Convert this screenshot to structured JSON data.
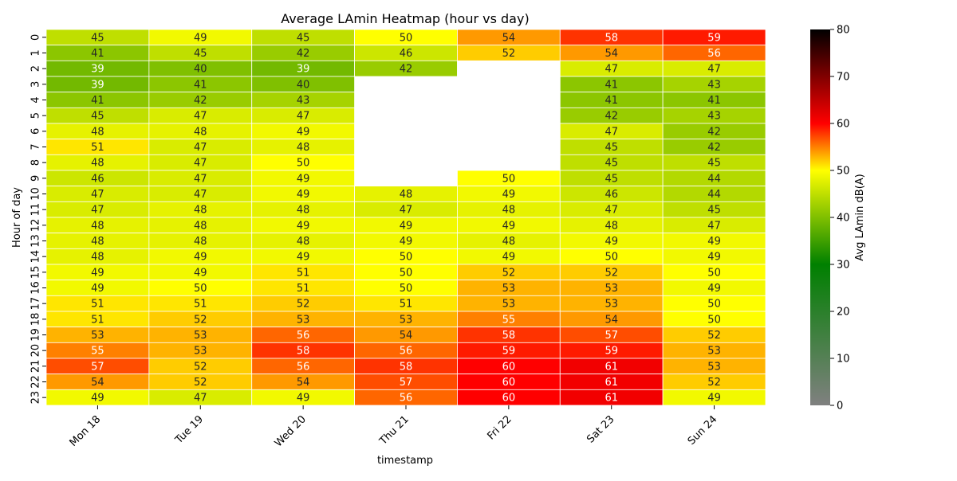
{
  "chart_data": {
    "type": "heatmap",
    "title": "Average LAmin Heatmap (hour vs day)",
    "xlabel": "timestamp",
    "ylabel": "Hour of day",
    "x_categories": [
      "Mon 18",
      "Tue 19",
      "Wed 20",
      "Thu 21",
      "Fri 22",
      "Sat 23",
      "Sun 24"
    ],
    "y_categories": [
      "0",
      "1",
      "2",
      "3",
      "4",
      "5",
      "6",
      "7",
      "8",
      "9",
      "10",
      "11",
      "12",
      "13",
      "14",
      "15",
      "16",
      "17",
      "18",
      "19",
      "20",
      "21",
      "22",
      "23"
    ],
    "values": [
      [
        45,
        49,
        45,
        50,
        54,
        58,
        59
      ],
      [
        41,
        45,
        42,
        46,
        52,
        54,
        56
      ],
      [
        39,
        40,
        39,
        42,
        null,
        47,
        47
      ],
      [
        39,
        41,
        40,
        null,
        null,
        41,
        43
      ],
      [
        41,
        42,
        43,
        null,
        null,
        41,
        41
      ],
      [
        45,
        47,
        47,
        null,
        null,
        42,
        43
      ],
      [
        48,
        48,
        49,
        null,
        null,
        47,
        42
      ],
      [
        51,
        47,
        48,
        null,
        null,
        45,
        42
      ],
      [
        48,
        47,
        50,
        null,
        null,
        45,
        45
      ],
      [
        46,
        47,
        49,
        null,
        50,
        45,
        44
      ],
      [
        47,
        47,
        49,
        48,
        49,
        46,
        44
      ],
      [
        47,
        48,
        48,
        47,
        48,
        47,
        45
      ],
      [
        48,
        48,
        49,
        49,
        49,
        48,
        47
      ],
      [
        48,
        48,
        48,
        49,
        48,
        49,
        49
      ],
      [
        48,
        49,
        49,
        50,
        49,
        50,
        49
      ],
      [
        49,
        49,
        51,
        50,
        52,
        52,
        50
      ],
      [
        49,
        50,
        51,
        50,
        53,
        53,
        49
      ],
      [
        51,
        51,
        52,
        51,
        53,
        53,
        50
      ],
      [
        51,
        52,
        53,
        53,
        55,
        54,
        50
      ],
      [
        53,
        53,
        56,
        54,
        58,
        57,
        52
      ],
      [
        55,
        53,
        58,
        56,
        59,
        59,
        53
      ],
      [
        57,
        52,
        56,
        58,
        60,
        61,
        53
      ],
      [
        54,
        52,
        54,
        57,
        60,
        61,
        52
      ],
      [
        49,
        47,
        49,
        56,
        60,
        61,
        49
      ]
    ],
    "colorbar": {
      "label": "Avg LAmin dB(A)",
      "range": [
        0,
        80
      ],
      "ticks": [
        0,
        10,
        20,
        30,
        40,
        50,
        60,
        70,
        80
      ],
      "stops": [
        {
          "v": 0,
          "color": "#808080"
        },
        {
          "v": 30,
          "color": "#008000"
        },
        {
          "v": 50,
          "color": "#ffff00"
        },
        {
          "v": 60,
          "color": "#ff0000"
        },
        {
          "v": 70,
          "color": "#800000"
        },
        {
          "v": 80,
          "color": "#000000"
        }
      ]
    },
    "missing_color": "#ffffff",
    "text_dark_color": "#262626",
    "text_light_color": "#ffffff"
  }
}
